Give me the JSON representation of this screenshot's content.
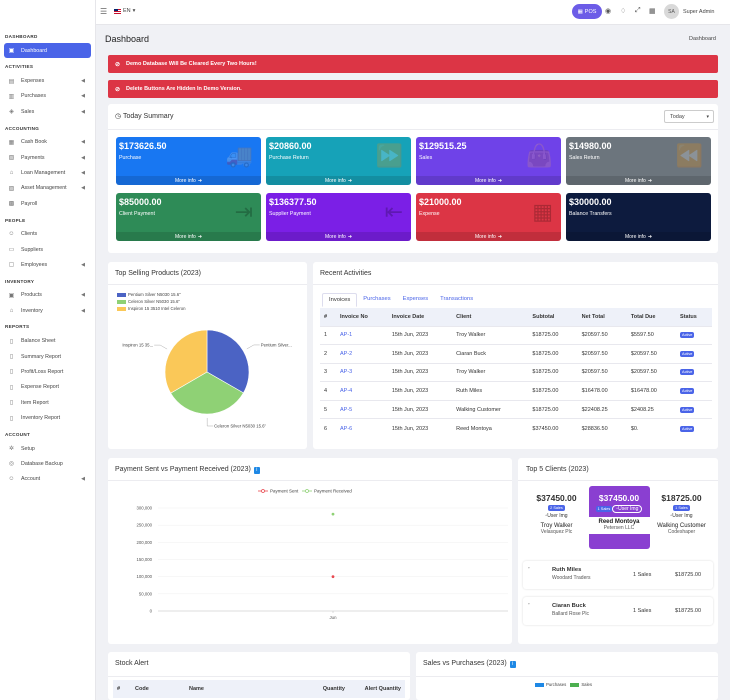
{
  "topbar": {
    "lang": "EN",
    "pos_label": "POS",
    "avatar_initials": "SA",
    "user_name": "Super Admin"
  },
  "sidebar": {
    "sections": [
      {
        "title": "DASHBOARD",
        "items": [
          {
            "label": "Dashboard",
            "icon": "monitor-icon",
            "active": true,
            "arrow": false
          }
        ]
      },
      {
        "title": "ACTIVITIES",
        "items": [
          {
            "label": "Expenses",
            "icon": "receipt-icon",
            "arrow": true
          },
          {
            "label": "Purchases",
            "icon": "cart-icon",
            "arrow": true
          },
          {
            "label": "Sales",
            "icon": "tag-icon",
            "arrow": true
          }
        ]
      },
      {
        "title": "ACCOUNTING",
        "items": [
          {
            "label": "Cash Book",
            "icon": "book-icon",
            "arrow": true
          },
          {
            "label": "Payments",
            "icon": "wallet-icon",
            "arrow": true
          },
          {
            "label": "Loan Management",
            "icon": "bank-icon",
            "arrow": true
          },
          {
            "label": "Asset Management",
            "icon": "briefcase-icon",
            "arrow": true
          },
          {
            "label": "Payroll",
            "icon": "money-icon",
            "arrow": false
          }
        ]
      },
      {
        "title": "PEOPLE",
        "items": [
          {
            "label": "Clients",
            "icon": "users-icon",
            "arrow": false
          },
          {
            "label": "Suppliers",
            "icon": "truck-icon",
            "arrow": false
          },
          {
            "label": "Employees",
            "icon": "id-card-icon",
            "arrow": true
          }
        ]
      },
      {
        "title": "INVENTORY",
        "items": [
          {
            "label": "Products",
            "icon": "box-icon",
            "arrow": true
          },
          {
            "label": "Inventory",
            "icon": "warehouse-icon",
            "arrow": true
          }
        ]
      },
      {
        "title": "REPORTS",
        "items": [
          {
            "label": "Balance Sheet",
            "icon": "file-icon",
            "arrow": false
          },
          {
            "label": "Summary Report",
            "icon": "file-icon",
            "arrow": false
          },
          {
            "label": "Profit/Loss Report",
            "icon": "file-icon",
            "arrow": false
          },
          {
            "label": "Expense Report",
            "icon": "file-icon",
            "arrow": false
          },
          {
            "label": "Item Report",
            "icon": "file-icon",
            "arrow": false
          },
          {
            "label": "Inventory Report",
            "icon": "file-icon",
            "arrow": false
          }
        ]
      },
      {
        "title": "ACCOUNT",
        "items": [
          {
            "label": "Setup",
            "icon": "gear-icon",
            "arrow": false
          },
          {
            "label": "Database Backup",
            "icon": "database-icon",
            "arrow": false
          },
          {
            "label": "Account",
            "icon": "user-icon",
            "arrow": true
          }
        ]
      }
    ]
  },
  "page": {
    "title": "Dashboard",
    "breadcrumb": "Dashboard"
  },
  "alerts": [
    "Demo Database Will Be Cleared Every Two Hours!",
    "Delete Buttons Are Hidden In Demo Version."
  ],
  "today_summary": {
    "title": "Today Summary",
    "filter_value": "Today",
    "more_label": "More info",
    "cards": [
      {
        "value": "$173626.50",
        "label": "Purchase",
        "color": "#1877f2",
        "icon": "truck-icon"
      },
      {
        "value": "$20860.00",
        "label": "Purchase Return",
        "color": "#16a2b8",
        "icon": "fast-forward-icon"
      },
      {
        "value": "$129515.25",
        "label": "Sales",
        "color": "#6f42e8",
        "icon": "shopping-bag-icon"
      },
      {
        "value": "$14980.00",
        "label": "Sales Return",
        "color": "#6c757d",
        "icon": "rewind-icon"
      },
      {
        "value": "$85000.00",
        "label": "Client Payment",
        "color": "#2e8b57",
        "icon": "sign-in-icon"
      },
      {
        "value": "$136377.50",
        "label": "Supplier Payment",
        "color": "#7b1fe6",
        "icon": "sign-out-icon"
      },
      {
        "value": "$21000.00",
        "label": "Expense",
        "color": "#dc3545",
        "icon": "calculator-icon"
      },
      {
        "value": "$30000.00",
        "label": "Balance Transfers",
        "color": "#0d1b3e",
        "icon": ""
      }
    ]
  },
  "top_products": {
    "title": "Top Selling Products (2023)",
    "chart_data": {
      "type": "pie",
      "legend": [
        "Pentium Silver N5030 15.6\"",
        "Celeron Silver N5030 15.6\"",
        "Inspiron 15 3510 Intel Celeron"
      ],
      "colors": [
        "#4b63c4",
        "#8fd175",
        "#fac858"
      ],
      "values": [
        33.3,
        33.3,
        33.4
      ],
      "slice_labels": [
        "Pentium Silver...",
        "Celeron Silver N5030 15.6\"",
        "Inspiron 15 35..."
      ]
    }
  },
  "recent_activities": {
    "title": "Recent Activities",
    "tabs": [
      "Invoices",
      "Purchases",
      "Expenses",
      "Transactions"
    ],
    "columns": [
      "#",
      "Invoice No",
      "Invoice Date",
      "Client",
      "Subtotal",
      "Net Total",
      "Total Due",
      "Status"
    ],
    "rows": [
      [
        "1",
        "AP-1",
        "15th Jun, 2023",
        "Troy Walker",
        "$18725.00",
        "$20597.50",
        "$5597.50",
        "Active"
      ],
      [
        "2",
        "AP-2",
        "15th Jun, 2023",
        "Ciaran Buck",
        "$18725.00",
        "$20597.50",
        "$20597.50",
        "Active"
      ],
      [
        "3",
        "AP-3",
        "15th Jun, 2023",
        "Troy Walker",
        "$18725.00",
        "$20597.50",
        "$20597.50",
        "Active"
      ],
      [
        "4",
        "AP-4",
        "15th Jun, 2023",
        "Ruth Miles",
        "$18725.00",
        "$16478.00",
        "$16478.00",
        "Active"
      ],
      [
        "5",
        "AP-5",
        "15th Jun, 2023",
        "Walking Customer",
        "$18725.00",
        "$22408.25",
        "$2408.25",
        "Active"
      ],
      [
        "6",
        "AP-6",
        "15th Jun, 2023",
        "Reed Montoya",
        "$37450.00",
        "$28836.50",
        "$0.",
        "Active"
      ]
    ]
  },
  "payments": {
    "title": "Payment Sent vs Payment Received (2023)",
    "chart_data": {
      "type": "scatter",
      "series": [
        {
          "name": "Payment Sent",
          "color": "#e8484f",
          "x": [
            "Jun"
          ],
          "values": [
            100000
          ]
        },
        {
          "name": "Payment Received",
          "color": "#8fd175",
          "x": [
            "Jun"
          ],
          "values": [
            282000
          ]
        }
      ],
      "yticks": [
        "300,000",
        "250,000",
        "200,000",
        "150,000",
        "100,000",
        "50,000",
        "0"
      ],
      "ylim": [
        0,
        300000
      ],
      "xticks": [
        "Jun"
      ]
    }
  },
  "top_clients": {
    "title": "Top 5 Clients (2023)",
    "img_alt": "User Img",
    "featured": [
      {
        "amount": "$37450.00",
        "sales": "2 Sales",
        "name": "Troy Walker",
        "company": "Velasquez Plc"
      },
      {
        "amount": "$37450.00",
        "sales": "1 Sales",
        "name": "Reed Montoya",
        "company": "Petersen LLC"
      },
      {
        "amount": "$18725.00",
        "sales": "1 Sales",
        "name": "Walking Customer",
        "company": "Codeshaper"
      }
    ],
    "list": [
      {
        "name": "Ruth Miles",
        "company": "Woodard Traders",
        "sales": "1 Sales",
        "amount": "$18725.00"
      },
      {
        "name": "Ciaran Buck",
        "company": "Ballard Rose Plc",
        "sales": "1 Sales",
        "amount": "$18725.00"
      }
    ]
  },
  "stock_alert": {
    "title": "Stock Alert",
    "columns": [
      "#",
      "Code",
      "Name",
      "Quantity",
      "Alert Quantity"
    ]
  },
  "sales_purchases": {
    "title": "Sales vs Purchases (2023)",
    "chart_data": {
      "type": "bar",
      "series": [
        {
          "name": "Purchases",
          "color": "#1e88e5"
        },
        {
          "name": "Sales",
          "color": "#4caf50"
        }
      ]
    }
  }
}
